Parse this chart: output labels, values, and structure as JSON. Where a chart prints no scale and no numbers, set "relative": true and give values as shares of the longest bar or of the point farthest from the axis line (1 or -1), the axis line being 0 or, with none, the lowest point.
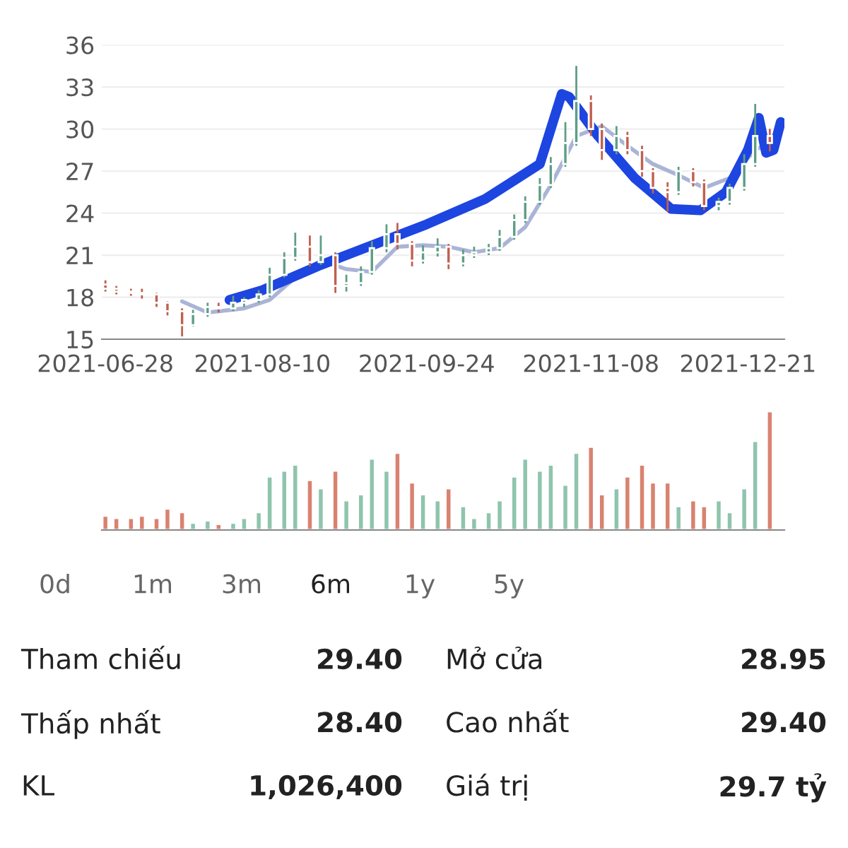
{
  "chart_data": [
    {
      "type": "candlestick",
      "x": [
        "2021-06-28",
        "2021-07-01",
        "2021-07-05",
        "2021-07-08",
        "2021-07-12",
        "2021-07-15",
        "2021-07-19",
        "2021-07-22",
        "2021-07-26",
        "2021-07-29",
        "2021-08-02",
        "2021-08-05",
        "2021-08-09",
        "2021-08-12",
        "2021-08-16",
        "2021-08-19",
        "2021-08-23",
        "2021-08-26",
        "2021-08-30",
        "2021-09-02",
        "2021-09-06",
        "2021-09-09",
        "2021-09-13",
        "2021-09-16",
        "2021-09-20",
        "2021-09-23",
        "2021-09-27",
        "2021-09-30",
        "2021-10-04",
        "2021-10-07",
        "2021-10-11",
        "2021-10-14",
        "2021-10-18",
        "2021-10-21",
        "2021-10-25",
        "2021-10-28",
        "2021-11-01",
        "2021-11-04",
        "2021-11-08",
        "2021-11-11",
        "2021-11-15",
        "2021-11-18",
        "2021-11-22",
        "2021-11-25",
        "2021-11-29",
        "2021-12-02",
        "2021-12-06",
        "2021-12-09",
        "2021-12-13",
        "2021-12-16",
        "2021-12-20",
        "2021-12-23",
        "2021-12-27"
      ],
      "ohlc": [
        [
          18.9,
          19.2,
          18.4,
          18.6
        ],
        [
          18.6,
          18.8,
          18.2,
          18.4
        ],
        [
          18.4,
          18.6,
          18.1,
          18.3
        ],
        [
          18.3,
          18.6,
          17.9,
          18.2
        ],
        [
          18.2,
          18.3,
          17.3,
          17.6
        ],
        [
          17.6,
          17.7,
          16.7,
          17.0
        ],
        [
          17.0,
          17.2,
          15.2,
          16.0
        ],
        [
          16.0,
          17.1,
          15.9,
          16.8
        ],
        [
          16.8,
          17.6,
          16.6,
          17.3
        ],
        [
          17.3,
          17.6,
          16.9,
          17.2
        ],
        [
          17.2,
          18.1,
          17.0,
          17.6
        ],
        [
          17.6,
          18.0,
          17.3,
          17.8
        ],
        [
          17.8,
          18.5,
          17.6,
          18.2
        ],
        [
          18.2,
          20.1,
          18.0,
          19.6
        ],
        [
          19.6,
          21.2,
          19.4,
          20.8
        ],
        [
          20.8,
          22.6,
          20.6,
          21.6
        ],
        [
          21.6,
          22.4,
          20.2,
          20.5
        ],
        [
          20.5,
          22.4,
          20.3,
          21.0
        ],
        [
          21.0,
          21.2,
          18.3,
          18.8
        ],
        [
          18.8,
          19.6,
          18.4,
          19.0
        ],
        [
          19.0,
          20.2,
          18.8,
          19.8
        ],
        [
          19.8,
          22.0,
          19.6,
          21.5
        ],
        [
          21.5,
          23.2,
          21.2,
          22.5
        ],
        [
          22.5,
          23.3,
          21.4,
          21.8
        ],
        [
          21.8,
          22.0,
          20.2,
          20.6
        ],
        [
          20.6,
          21.7,
          20.4,
          21.2
        ],
        [
          21.2,
          22.2,
          20.9,
          21.6
        ],
        [
          21.6,
          21.8,
          20.0,
          20.4
        ],
        [
          20.4,
          21.4,
          20.2,
          21.0
        ],
        [
          21.0,
          21.6,
          20.8,
          21.2
        ],
        [
          21.2,
          21.8,
          21.0,
          21.5
        ],
        [
          21.5,
          22.8,
          21.3,
          22.3
        ],
        [
          22.3,
          23.9,
          22.1,
          23.5
        ],
        [
          23.5,
          25.2,
          23.3,
          24.8
        ],
        [
          24.8,
          26.5,
          24.6,
          26.0
        ],
        [
          26.0,
          28.0,
          25.8,
          27.5
        ],
        [
          27.5,
          30.5,
          27.3,
          29.0
        ],
        [
          29.0,
          34.5,
          28.8,
          32.0
        ],
        [
          32.0,
          32.4,
          29.5,
          30.0
        ],
        [
          30.0,
          30.4,
          27.8,
          28.5
        ],
        [
          28.5,
          30.2,
          28.2,
          29.5
        ],
        [
          29.5,
          29.8,
          28.2,
          28.5
        ],
        [
          28.5,
          28.8,
          26.6,
          27.0
        ],
        [
          27.0,
          27.2,
          25.4,
          25.8
        ],
        [
          25.8,
          26.2,
          24.1,
          25.5
        ],
        [
          25.5,
          27.3,
          25.3,
          27.0
        ],
        [
          27.0,
          27.2,
          25.9,
          26.2
        ],
        [
          26.2,
          26.4,
          24.2,
          24.5
        ],
        [
          24.5,
          25.1,
          24.2,
          24.8
        ],
        [
          24.8,
          26.1,
          24.6,
          25.8
        ],
        [
          25.8,
          28.2,
          25.6,
          27.5
        ],
        [
          27.5,
          31.8,
          27.3,
          29.5
        ],
        [
          29.5,
          30.0,
          28.4,
          29.0
        ]
      ],
      "colors": [
        "#c0604f",
        "#c0604f",
        "#c0604f",
        "#c0604f",
        "#c0604f",
        "#c0604f",
        "#c0604f",
        "#5f9e86",
        "#5f9e86",
        "#c0604f",
        "#5f9e86",
        "#5f9e86",
        "#5f9e86",
        "#5f9e86",
        "#5f9e86",
        "#5f9e86",
        "#c0604f",
        "#5f9e86",
        "#c0604f",
        "#5f9e86",
        "#5f9e86",
        "#5f9e86",
        "#5f9e86",
        "#c0604f",
        "#c0604f",
        "#5f9e86",
        "#5f9e86",
        "#c0604f",
        "#5f9e86",
        "#5f9e86",
        "#5f9e86",
        "#5f9e86",
        "#5f9e86",
        "#5f9e86",
        "#5f9e86",
        "#5f9e86",
        "#5f9e86",
        "#5f9e86",
        "#c0604f",
        "#c0604f",
        "#5f9e86",
        "#c0604f",
        "#c0604f",
        "#c0604f",
        "#c0604f",
        "#5f9e86",
        "#c0604f",
        "#c0604f",
        "#5f9e86",
        "#5f9e86",
        "#5f9e86",
        "#5f9e86",
        "#c0604f"
      ],
      "series": [
        {
          "type": "line",
          "color": "#aab4d6",
          "x": [
            "2021-07-19",
            "2021-07-26",
            "2021-08-05",
            "2021-08-12",
            "2021-08-19",
            "2021-08-26",
            "2021-09-02",
            "2021-09-09",
            "2021-09-16",
            "2021-09-23",
            "2021-09-30",
            "2021-10-07",
            "2021-10-14",
            "2021-10-21",
            "2021-10-28",
            "2021-11-04",
            "2021-11-11",
            "2021-11-18",
            "2021-11-25",
            "2021-12-02",
            "2021-12-09",
            "2021-12-16",
            "2021-12-23",
            "2021-12-29"
          ],
          "values": [
            17.7,
            16.9,
            17.2,
            17.8,
            19.4,
            20.6,
            20.0,
            19.8,
            21.6,
            21.7,
            21.6,
            21.2,
            21.5,
            23.0,
            26.0,
            29.5,
            30.2,
            28.8,
            27.5,
            26.7,
            25.8,
            26.5,
            28.5,
            29.3
          ]
        },
        {
          "type": "line",
          "color": "#1d45e0",
          "x": [
            "2021-08-01",
            "2021-08-10",
            "2021-08-26",
            "2021-09-10",
            "2021-09-24",
            "2021-10-10",
            "2021-10-25",
            "2021-10-31",
            "2021-11-02",
            "2021-11-10",
            "2021-11-20",
            "2021-11-30",
            "2021-12-08",
            "2021-12-15",
            "2021-12-21",
            "2021-12-24",
            "2021-12-26",
            "2021-12-28",
            "2021-12-30"
          ],
          "values": [
            17.8,
            18.5,
            20.3,
            21.8,
            23.2,
            25.0,
            27.5,
            32.5,
            32.3,
            29.5,
            26.5,
            24.3,
            24.2,
            25.5,
            28.5,
            30.8,
            28.3,
            28.5,
            30.5
          ]
        }
      ],
      "xlim": [
        "2021-06-27",
        "2021-12-31"
      ],
      "xticks": [
        "2021-06-28",
        "2021-08-10",
        "2021-09-24",
        "2021-11-08",
        "2021-12-21"
      ],
      "ylim": [
        15,
        36
      ],
      "yticks": [
        15,
        18,
        21,
        24,
        27,
        30,
        33,
        36
      ],
      "grid": "y"
    },
    {
      "type": "bar",
      "relative": true,
      "tick_labels": false,
      "x": [
        "2021-06-28",
        "2021-07-01",
        "2021-07-05",
        "2021-07-08",
        "2021-07-12",
        "2021-07-15",
        "2021-07-19",
        "2021-07-22",
        "2021-07-26",
        "2021-07-29",
        "2021-08-02",
        "2021-08-05",
        "2021-08-09",
        "2021-08-12",
        "2021-08-16",
        "2021-08-19",
        "2021-08-23",
        "2021-08-26",
        "2021-08-30",
        "2021-09-02",
        "2021-09-06",
        "2021-09-09",
        "2021-09-13",
        "2021-09-16",
        "2021-09-20",
        "2021-09-23",
        "2021-09-27",
        "2021-09-30",
        "2021-10-04",
        "2021-10-07",
        "2021-10-11",
        "2021-10-14",
        "2021-10-18",
        "2021-10-21",
        "2021-10-25",
        "2021-10-28",
        "2021-11-01",
        "2021-11-04",
        "2021-11-08",
        "2021-11-11",
        "2021-11-15",
        "2021-11-18",
        "2021-11-22",
        "2021-11-25",
        "2021-11-29",
        "2021-12-02",
        "2021-12-06",
        "2021-12-09",
        "2021-12-13",
        "2021-12-16",
        "2021-12-20",
        "2021-12-23",
        "2021-12-27"
      ],
      "values": [
        0.12,
        0.1,
        0.1,
        0.12,
        0.1,
        0.18,
        0.15,
        0.06,
        0.08,
        0.05,
        0.06,
        0.1,
        0.15,
        0.45,
        0.5,
        0.55,
        0.42,
        0.35,
        0.5,
        0.25,
        0.3,
        0.6,
        0.5,
        0.65,
        0.4,
        0.3,
        0.25,
        0.35,
        0.2,
        0.1,
        0.15,
        0.25,
        0.45,
        0.6,
        0.5,
        0.55,
        0.38,
        0.65,
        0.7,
        0.3,
        0.35,
        0.45,
        0.55,
        0.4,
        0.4,
        0.2,
        0.25,
        0.2,
        0.25,
        0.15,
        0.35,
        0.75,
        1.0
      ],
      "colors": [
        "#d98270",
        "#d98270",
        "#d98270",
        "#d98270",
        "#d98270",
        "#d98270",
        "#d98270",
        "#8fc4ad",
        "#8fc4ad",
        "#d98270",
        "#8fc4ad",
        "#8fc4ad",
        "#8fc4ad",
        "#8fc4ad",
        "#8fc4ad",
        "#8fc4ad",
        "#d98270",
        "#8fc4ad",
        "#d98270",
        "#8fc4ad",
        "#8fc4ad",
        "#8fc4ad",
        "#8fc4ad",
        "#d98270",
        "#d98270",
        "#8fc4ad",
        "#8fc4ad",
        "#d98270",
        "#8fc4ad",
        "#8fc4ad",
        "#8fc4ad",
        "#8fc4ad",
        "#8fc4ad",
        "#8fc4ad",
        "#8fc4ad",
        "#8fc4ad",
        "#8fc4ad",
        "#8fc4ad",
        "#d98270",
        "#d98270",
        "#8fc4ad",
        "#d98270",
        "#d98270",
        "#d98270",
        "#d98270",
        "#8fc4ad",
        "#d98270",
        "#d98270",
        "#8fc4ad",
        "#8fc4ad",
        "#8fc4ad",
        "#8fc4ad",
        "#d98270"
      ],
      "xlim": [
        "2021-06-27",
        "2021-12-31"
      ]
    },
    {
      "type": "other",
      "annotations": [
        "0d",
        "1m",
        "3m",
        "6m",
        "1y",
        "5y",
        "Tham chiếu",
        "29.40",
        "Mở cửa",
        "28.95",
        "Thấp nhất",
        "28.40",
        "Cao nhất",
        "29.40",
        "KL",
        "1,026,400",
        "Giá trị",
        "29.7 tỷ"
      ]
    }
  ]
}
